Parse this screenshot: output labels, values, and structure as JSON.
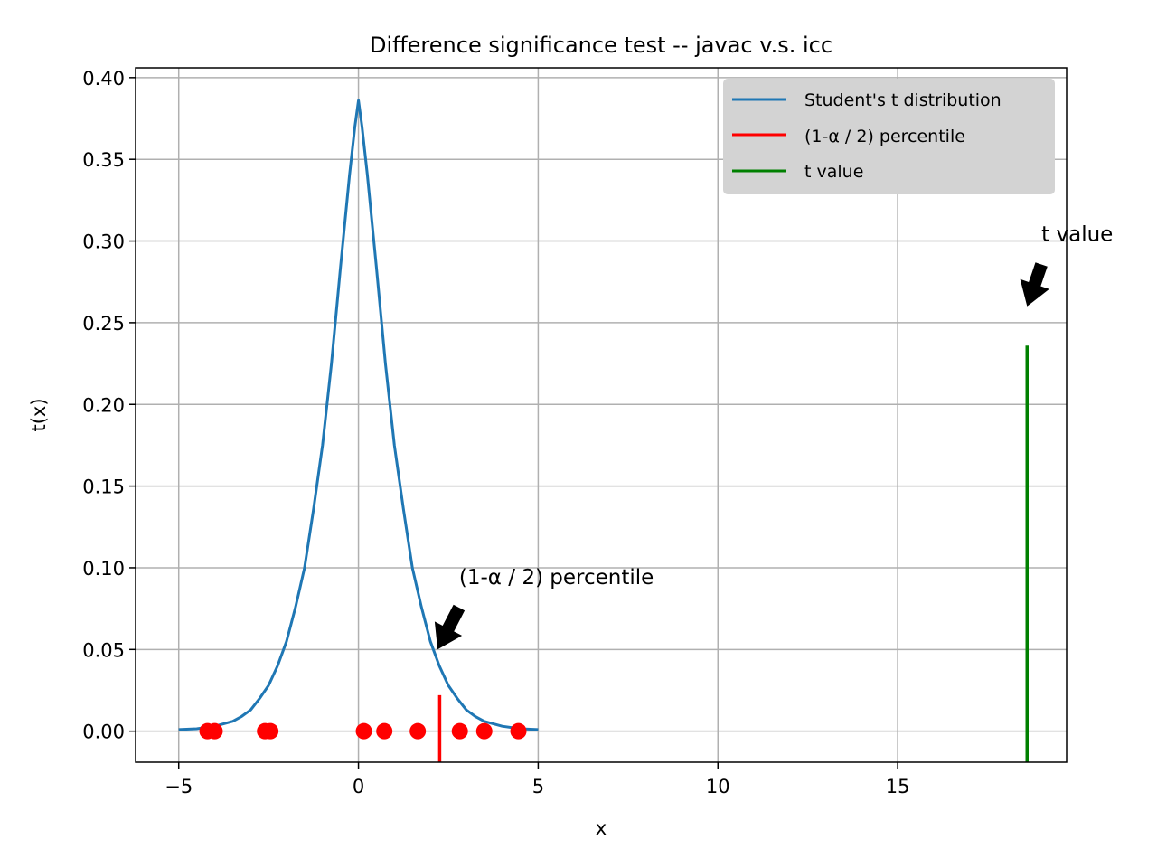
{
  "chart_data": {
    "type": "line",
    "title": "Difference significance test -- javac v.s. icc",
    "xlabel": "x",
    "ylabel": "t(x)",
    "xlim": [
      -6.2,
      19.7
    ],
    "ylim": [
      -0.019,
      0.406
    ],
    "xticks": [
      -5,
      0,
      5,
      10,
      15
    ],
    "xtick_labels": [
      "−5",
      "0",
      "5",
      "10",
      "15"
    ],
    "yticks": [
      0.0,
      0.05,
      0.1,
      0.15,
      0.2,
      0.25,
      0.3,
      0.35,
      0.4
    ],
    "ytick_labels": [
      "0.00",
      "0.05",
      "0.10",
      "0.15",
      "0.20",
      "0.25",
      "0.30",
      "0.35",
      "0.40"
    ],
    "grid": true,
    "legend_position": "top-right",
    "colors": {
      "distribution": "#1f77b4",
      "percentile": "#ff0000",
      "t_value": "#008000",
      "points": "#ff0000",
      "legend_bg": "#d3d3d3"
    },
    "series": [
      {
        "name": "Student's t distribution",
        "kind": "line",
        "x": [
          -5.0,
          -4.5,
          -4.0,
          -3.5,
          -3.25,
          -3.0,
          -2.75,
          -2.5,
          -2.25,
          -2.0,
          -1.75,
          -1.5,
          -1.25,
          -1.0,
          -0.75,
          -0.5,
          -0.25,
          -0.1,
          0.0,
          0.1,
          0.25,
          0.5,
          0.75,
          1.0,
          1.25,
          1.5,
          1.75,
          2.0,
          2.25,
          2.5,
          2.75,
          3.0,
          3.25,
          3.5,
          4.0,
          4.5,
          5.0
        ],
        "y": [
          0.001,
          0.0015,
          0.003,
          0.006,
          0.009,
          0.013,
          0.02,
          0.028,
          0.04,
          0.055,
          0.076,
          0.1,
          0.136,
          0.175,
          0.225,
          0.284,
          0.34,
          0.37,
          0.386,
          0.37,
          0.34,
          0.284,
          0.225,
          0.175,
          0.136,
          0.1,
          0.076,
          0.055,
          0.04,
          0.028,
          0.02,
          0.013,
          0.009,
          0.006,
          0.003,
          0.0015,
          0.001
        ]
      },
      {
        "name": "(1-α / 2) percentile",
        "kind": "vline",
        "x": 2.26,
        "y_range": [
          -0.019,
          0.022
        ]
      },
      {
        "name": "t value",
        "kind": "vline",
        "x": 18.6,
        "y_range": [
          -0.019,
          0.236
        ]
      },
      {
        "kind": "scatter",
        "x": [
          -4.2,
          -4.0,
          -2.6,
          -2.45,
          0.15,
          0.72,
          1.65,
          2.82,
          3.5,
          4.45
        ],
        "y": [
          0,
          0,
          0,
          0,
          0,
          0,
          0,
          0,
          0,
          0
        ]
      }
    ],
    "annotations": [
      {
        "text": "(1-α / 2) percentile",
        "point": [
          2.2,
          0.05
        ],
        "text_at": [
          2.8,
          0.09
        ]
      },
      {
        "text": "t value",
        "point": [
          18.6,
          0.26
        ],
        "text_at": [
          19.0,
          0.3
        ]
      }
    ]
  }
}
